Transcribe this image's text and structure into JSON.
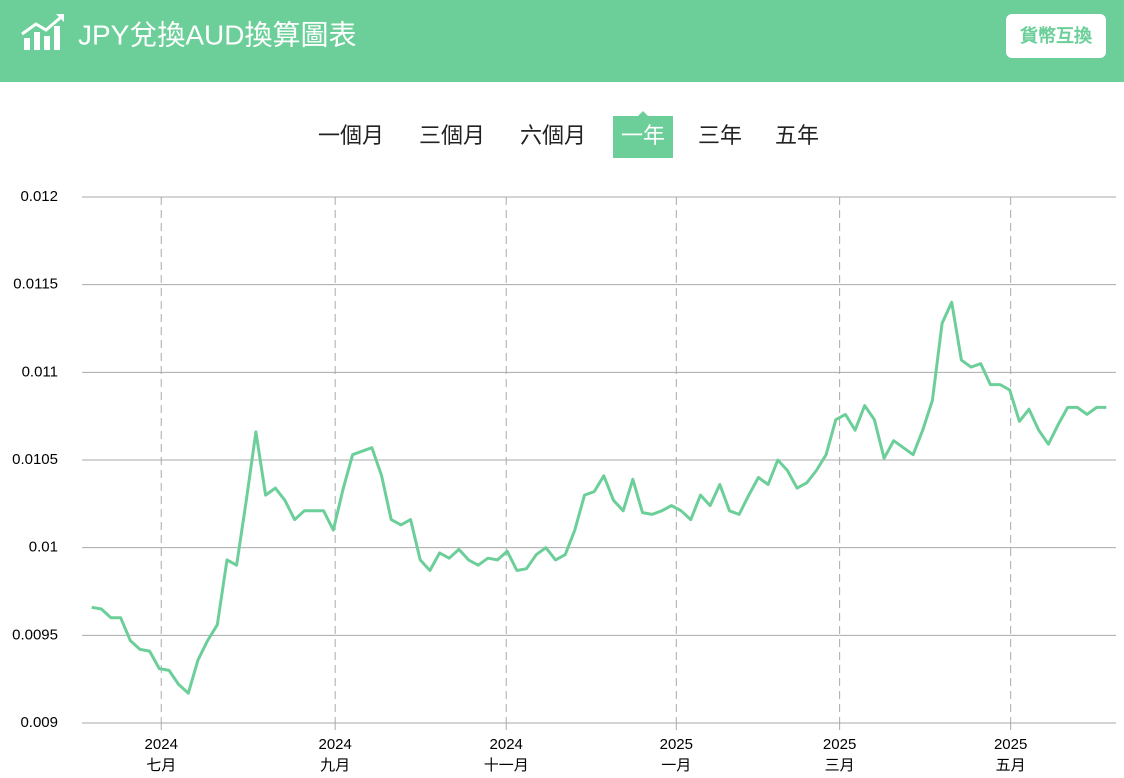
{
  "header": {
    "title": "JPY兌換AUD換算圖表",
    "button": "貨幣互換"
  },
  "tabs": {
    "items": [
      "一個月",
      "三個月",
      "六個月",
      "一年",
      "三年",
      "五年"
    ],
    "selected": 3
  },
  "chart_data": {
    "type": "line",
    "series": [
      {
        "color": "#6ccf99",
        "values": [
          0.00966,
          0.00965,
          0.0096,
          0.0096,
          0.00947,
          0.00942,
          0.00941,
          0.00931,
          0.0093,
          0.00922,
          0.00917,
          0.00936,
          0.00947,
          0.00956,
          0.00993,
          0.0099,
          0.01027,
          0.01066,
          0.0103,
          0.01034,
          0.01027,
          0.01016,
          0.01021,
          0.01021,
          0.01021,
          0.0101,
          0.01033,
          0.01053,
          0.01055,
          0.01057,
          0.01041,
          0.01016,
          0.01013,
          0.01016,
          0.00993,
          0.00987,
          0.00997,
          0.00994,
          0.00999,
          0.00993,
          0.0099,
          0.00994,
          0.00993,
          0.00998,
          0.00987,
          0.00988,
          0.00996,
          0.01,
          0.00993,
          0.00996,
          0.0101,
          0.0103,
          0.01032,
          0.01041,
          0.01027,
          0.01021,
          0.01039,
          0.0102,
          0.01019,
          0.01021,
          0.01024,
          0.01021,
          0.01016,
          0.0103,
          0.01024,
          0.01036,
          0.01021,
          0.01019,
          0.0103,
          0.0104,
          0.01036,
          0.0105,
          0.01044,
          0.01034,
          0.01037,
          0.01044,
          0.01053,
          0.01073,
          0.01076,
          0.01067,
          0.01081,
          0.01073,
          0.01051,
          0.01061,
          0.01057,
          0.01053,
          0.01067,
          0.01084,
          0.01128,
          0.0114,
          0.01107,
          0.01103,
          0.01105,
          0.01093,
          0.01093,
          0.0109,
          0.01072,
          0.01079,
          0.01067,
          0.01059,
          0.0107,
          0.0108,
          0.0108,
          0.01076,
          0.0108,
          0.0108
        ]
      }
    ],
    "xlim": [
      -1,
      106
    ],
    "xticks": [
      {
        "value": 7.2,
        "label": [
          "2024",
          "七月"
        ]
      },
      {
        "value": 25.2,
        "label": [
          "2024",
          "九月"
        ]
      },
      {
        "value": 42.9,
        "label": [
          "2024",
          "十一月"
        ]
      },
      {
        "value": 60.5,
        "label": [
          "2025",
          "一月"
        ]
      },
      {
        "value": 77.4,
        "label": [
          "2025",
          "三月"
        ]
      },
      {
        "value": 95.1,
        "label": [
          "2025",
          "五月"
        ]
      }
    ],
    "ylim": [
      0.009,
      0.012
    ],
    "yticks": [
      0.009,
      0.0095,
      0.01,
      0.0105,
      0.011,
      0.0115,
      0.012
    ],
    "grid": true
  }
}
